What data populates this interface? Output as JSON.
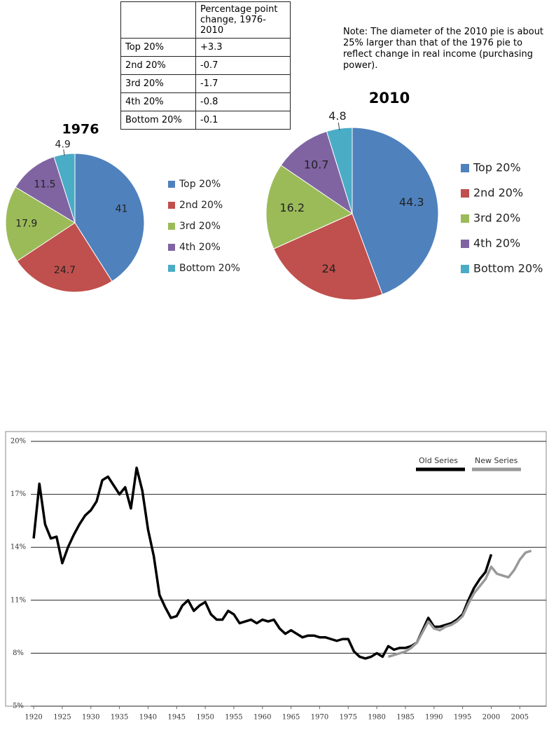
{
  "table": {
    "column_header": "Percentage point change, 1976-2010",
    "rows": [
      [
        "Top 20%",
        "+3.3"
      ],
      [
        "2nd 20%",
        "-0.7"
      ],
      [
        "3rd 20%",
        "-1.7"
      ],
      [
        "4th 20%",
        "-0.8"
      ],
      [
        "Bottom 20%",
        "-0.1"
      ]
    ]
  },
  "note": "Note: The diameter of the 2010 pie is about 25% larger than that of the 1976 pie to reflect change in real income (purchasing power).",
  "chart_data": [
    {
      "type": "pie",
      "title": "1976",
      "categories": [
        "Top 20%",
        "2nd 20%",
        "3rd 20%",
        "4th 20%",
        "Bottom 20%"
      ],
      "values": [
        41,
        24.7,
        17.9,
        11.5,
        4.9
      ],
      "colors": [
        "#4f81bd",
        "#c0504d",
        "#9bbb59",
        "#8064a2",
        "#4bacc6"
      ],
      "legend": "right"
    },
    {
      "type": "pie",
      "title": "2010",
      "categories": [
        "Top 20%",
        "2nd 20%",
        "3rd 20%",
        "4th 20%",
        "Bottom 20%"
      ],
      "values": [
        44.3,
        24,
        16.2,
        10.7,
        4.8
      ],
      "colors": [
        "#4f81bd",
        "#c0504d",
        "#9bbb59",
        "#8064a2",
        "#4bacc6"
      ],
      "legend": "right"
    },
    {
      "type": "line",
      "x": [
        1920,
        1921,
        1922,
        1923,
        1924,
        1925,
        1926,
        1927,
        1928,
        1929,
        1930,
        1931,
        1932,
        1933,
        1934,
        1935,
        1936,
        1937,
        1938,
        1939,
        1940,
        1941,
        1942,
        1943,
        1944,
        1945,
        1946,
        1947,
        1948,
        1949,
        1950,
        1951,
        1952,
        1953,
        1954,
        1955,
        1956,
        1957,
        1958,
        1959,
        1960,
        1961,
        1962,
        1963,
        1964,
        1965,
        1966,
        1967,
        1968,
        1969,
        1970,
        1971,
        1972,
        1973,
        1974,
        1975,
        1976,
        1977,
        1978,
        1979,
        1980,
        1981,
        1982,
        1983,
        1984,
        1985,
        1986,
        1987,
        1988,
        1989,
        1990,
        1991,
        1992,
        1993,
        1994,
        1995,
        1996,
        1997,
        1998,
        1999,
        2000,
        2001,
        2002,
        2003,
        2004,
        2005,
        2006,
        2007
      ],
      "series": [
        {
          "name": "Old Series",
          "color": "#000000",
          "values": [
            14.5,
            17.6,
            15.3,
            14.5,
            14.6,
            13.1,
            14.0,
            14.7,
            15.3,
            15.8,
            16.1,
            16.6,
            17.8,
            18.0,
            17.5,
            17.0,
            17.4,
            16.2,
            18.5,
            17.2,
            15.0,
            13.5,
            11.3,
            10.6,
            10.0,
            10.1,
            10.7,
            11.0,
            10.4,
            10.7,
            10.9,
            10.2,
            9.9,
            9.9,
            10.4,
            10.2,
            9.7,
            9.8,
            9.9,
            9.7,
            9.9,
            9.8,
            9.9,
            9.4,
            9.1,
            9.3,
            9.1,
            8.9,
            9.0,
            9.0,
            8.9,
            8.9,
            8.8,
            8.7,
            8.8,
            8.8,
            8.1,
            7.8,
            7.7,
            7.8,
            8.0,
            7.8,
            8.4,
            8.2,
            8.3,
            8.3,
            8.4,
            8.6,
            9.3,
            10.0,
            9.5,
            9.5,
            9.6,
            9.7,
            9.9,
            10.2,
            11.0,
            11.7,
            12.2,
            12.6,
            13.6,
            null,
            null,
            null,
            null,
            null,
            null,
            null
          ]
        },
        {
          "name": "New Series",
          "color": "#999999",
          "values": [
            null,
            null,
            null,
            null,
            null,
            null,
            null,
            null,
            null,
            null,
            null,
            null,
            null,
            null,
            null,
            null,
            null,
            null,
            null,
            null,
            null,
            null,
            null,
            null,
            null,
            null,
            null,
            null,
            null,
            null,
            null,
            null,
            null,
            null,
            null,
            null,
            null,
            null,
            null,
            null,
            null,
            null,
            null,
            null,
            null,
            null,
            null,
            null,
            null,
            null,
            null,
            null,
            null,
            null,
            null,
            null,
            null,
            null,
            null,
            null,
            null,
            null,
            7.8,
            7.9,
            8.0,
            8.1,
            8.3,
            8.6,
            9.2,
            9.8,
            9.4,
            9.3,
            9.5,
            9.6,
            9.8,
            10.1,
            10.8,
            11.4,
            11.8,
            12.2,
            12.9,
            12.5,
            12.4,
            12.3,
            12.7,
            13.3,
            13.7,
            13.8
          ]
        }
      ],
      "xlim": [
        1919.5,
        2009
      ],
      "xticks": [
        1920,
        1925,
        1930,
        1935,
        1940,
        1945,
        1950,
        1955,
        1960,
        1965,
        1970,
        1975,
        1980,
        1985,
        1990,
        1995,
        2000,
        2005
      ],
      "ylim": [
        5,
        20
      ],
      "yticks": [
        {
          "value": 5,
          "label": "5%"
        },
        {
          "value": 8,
          "label": "8%"
        },
        {
          "value": 11,
          "label": "11%"
        },
        {
          "value": 14,
          "label": "14%"
        },
        {
          "value": 17,
          "label": "17%"
        },
        {
          "value": 20,
          "label": "20%"
        }
      ],
      "grid": true,
      "legend": "top-right"
    }
  ]
}
